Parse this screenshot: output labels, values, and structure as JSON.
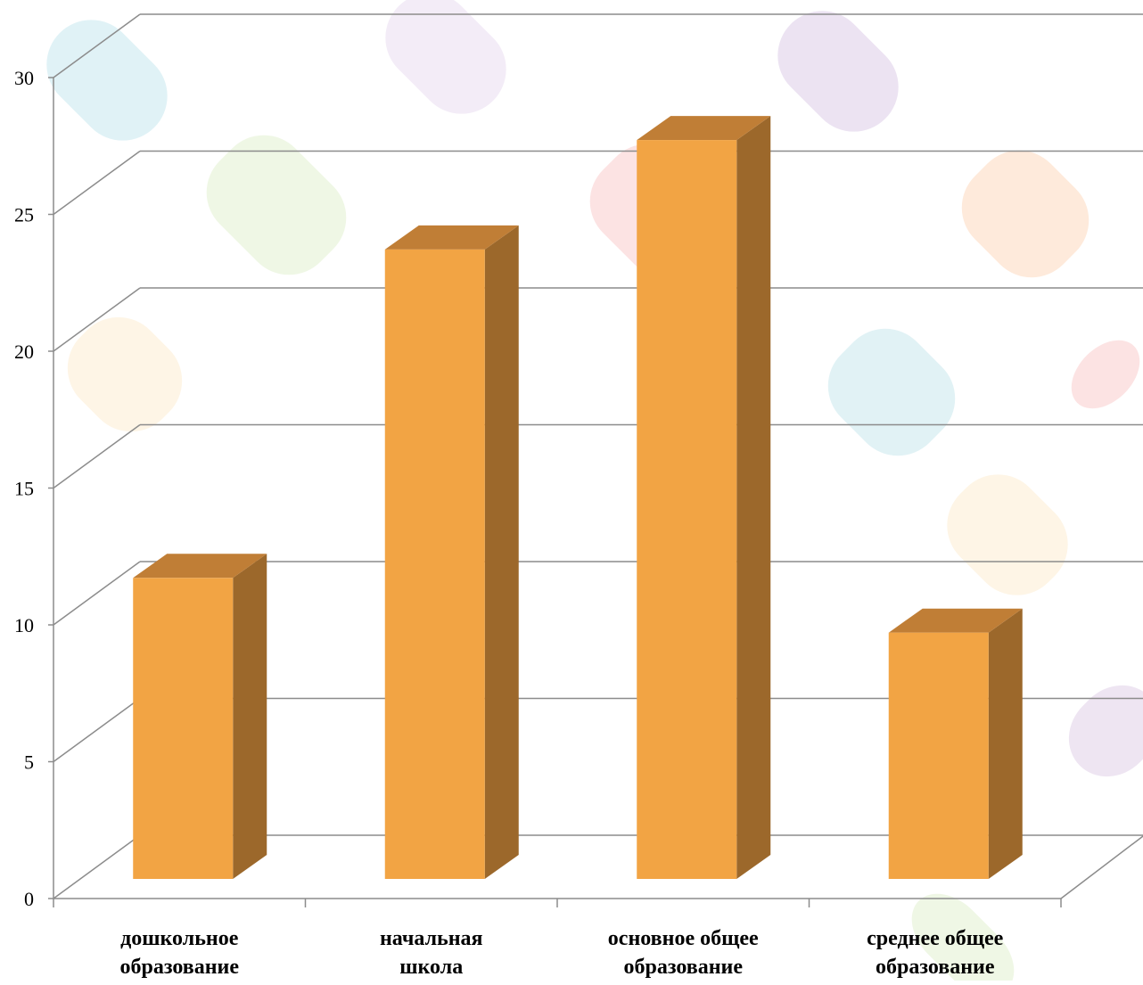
{
  "chart_data": {
    "type": "bar",
    "style": "3d-column",
    "categories": [
      [
        "дошкольное",
        "образование"
      ],
      [
        "начальная",
        "школа"
      ],
      [
        "основное общее",
        "образование"
      ],
      [
        "среднее общее",
        "образование"
      ]
    ],
    "values": [
      11,
      23,
      27,
      9
    ],
    "title": "",
    "xlabel": "",
    "ylabel": "",
    "ylim": [
      0,
      30
    ],
    "yticks": [
      "0",
      "5",
      "10",
      "15",
      "20",
      "25",
      "30"
    ],
    "grid": true,
    "legend": "none"
  },
  "colors": {
    "bar_front": "#F2A444",
    "bar_top": "#C07E36",
    "bar_side": "#9C682B",
    "grid": "#8C8C8C",
    "axis": "#8C8C8C"
  }
}
